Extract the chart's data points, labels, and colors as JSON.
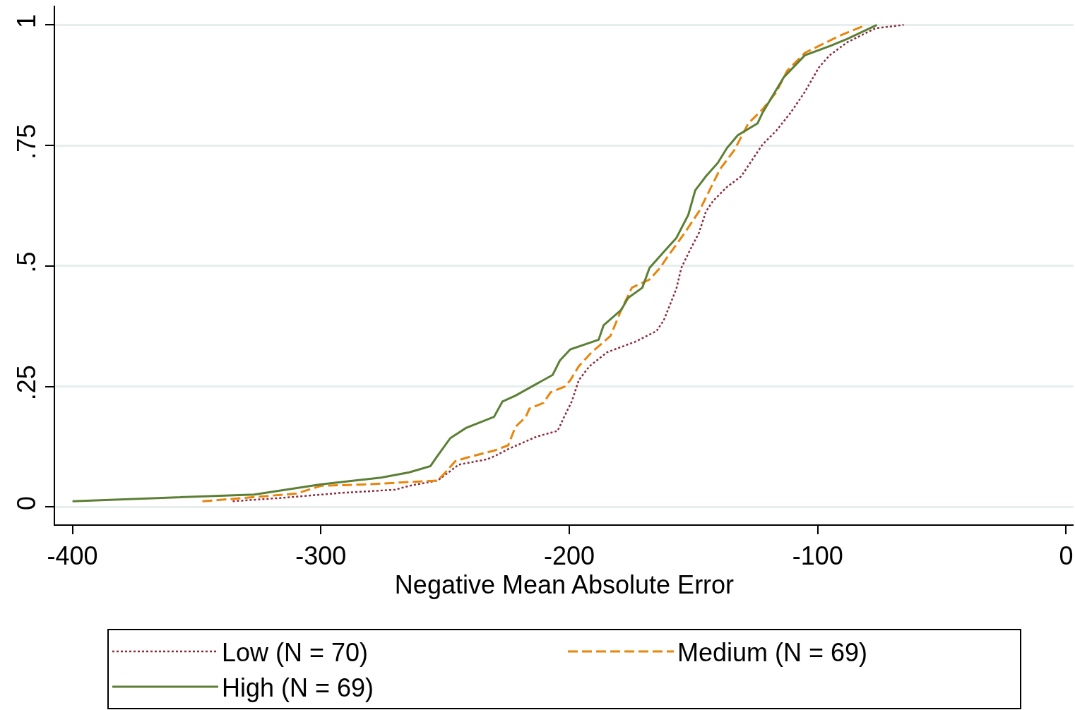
{
  "chart_data": {
    "type": "line",
    "xlabel": "Negative Mean Absolute Error",
    "xlim": [
      -407,
      3
    ],
    "xticks": [
      -400,
      -300,
      -200,
      -100,
      0
    ],
    "ylim": [
      -0.036,
      1.04
    ],
    "yticks": [
      0,
      {
        "value": 0.25,
        "label": ".25"
      },
      {
        "value": 0.5,
        "label": ".5"
      },
      {
        "value": 0.75,
        "label": ".75"
      },
      1
    ],
    "grid": "y",
    "legend": "bottom",
    "marker": "none",
    "series": [
      {
        "name": "Low (N = 70)",
        "color": "#8b2a3a",
        "line_style": "dotted",
        "x": [
          -335.5,
          -315.6,
          -292.8,
          -270.1,
          -264.4,
          -253.0,
          -247.3,
          -244.5,
          -233.1,
          -230.3,
          -224.6,
          -213.2,
          -204.7,
          -201.8,
          -199.0,
          -196.2,
          -191.9,
          -184.8,
          -173.4,
          -164.9,
          -162.0,
          -159.2,
          -156.9,
          -154.9,
          -152.1,
          -147.8,
          -145.0,
          -142.1,
          -136.5,
          -130.8,
          -125.1,
          -122.2,
          -116.6,
          -110.9,
          -105.2,
          -99.5,
          -95.2,
          -88.1,
          -76.8,
          -65.4
        ],
        "values": [
          0.012,
          0.019,
          0.029,
          0.036,
          0.044,
          0.055,
          0.077,
          0.088,
          0.099,
          0.105,
          0.12,
          0.146,
          0.158,
          0.19,
          0.219,
          0.263,
          0.292,
          0.321,
          0.343,
          0.365,
          0.387,
          0.423,
          0.453,
          0.496,
          0.526,
          0.569,
          0.613,
          0.635,
          0.664,
          0.686,
          0.73,
          0.752,
          0.781,
          0.818,
          0.861,
          0.912,
          0.937,
          0.964,
          0.993,
          1.0
        ]
      },
      {
        "name": "Medium (N = 69)",
        "color": "#e8850c",
        "line_style": "dashed",
        "x": [
          -347.7,
          -332.6,
          -309.9,
          -299.9,
          -281.4,
          -253.0,
          -250.2,
          -245.9,
          -241.6,
          -230.3,
          -224.6,
          -221.7,
          -217.5,
          -216.1,
          -210.4,
          -207.5,
          -201.8,
          -199.6,
          -196.2,
          -191.0,
          -187.6,
          -183.4,
          -179.1,
          -174.8,
          -167.7,
          -163.5,
          -160.6,
          -153.5,
          -147.8,
          -142.1,
          -139.3,
          -133.6,
          -127.9,
          -122.2,
          -116.6,
          -112.3,
          -105.2,
          -91.0,
          -81.0
        ],
        "values": [
          0.012,
          0.018,
          0.028,
          0.044,
          0.047,
          0.055,
          0.07,
          0.095,
          0.102,
          0.117,
          0.128,
          0.166,
          0.187,
          0.204,
          0.216,
          0.238,
          0.25,
          0.263,
          0.292,
          0.321,
          0.336,
          0.355,
          0.409,
          0.455,
          0.472,
          0.496,
          0.518,
          0.569,
          0.613,
          0.672,
          0.701,
          0.74,
          0.796,
          0.825,
          0.861,
          0.905,
          0.942,
          0.978,
          0.999
        ]
      },
      {
        "name": "High (N = 69)",
        "color": "#5b7f35",
        "line_style": "solid",
        "x": [
          -400,
          -326.9,
          -299.9,
          -275.8,
          -264.4,
          -255.9,
          -253.6,
          -247.9,
          -241.6,
          -230.3,
          -226.9,
          -221.7,
          -206.7,
          -203.8,
          -199.6,
          -188.2,
          -186.2,
          -179.1,
          -176.3,
          -170.6,
          -167.7,
          -160.6,
          -156.9,
          -152.1,
          -149.3,
          -145.0,
          -140.2,
          -136.5,
          -132.2,
          -124.2,
          -122.2,
          -118.0,
          -113.7,
          -105.2,
          -95.2,
          -88.1,
          -76.2
        ],
        "values": [
          0.012,
          0.026,
          0.047,
          0.061,
          0.072,
          0.085,
          0.102,
          0.143,
          0.164,
          0.187,
          0.219,
          0.231,
          0.274,
          0.304,
          0.327,
          0.347,
          0.377,
          0.409,
          0.434,
          0.455,
          0.496,
          0.537,
          0.558,
          0.606,
          0.657,
          0.686,
          0.714,
          0.745,
          0.771,
          0.796,
          0.818,
          0.854,
          0.891,
          0.937,
          0.956,
          0.971,
          1.0
        ]
      }
    ]
  }
}
